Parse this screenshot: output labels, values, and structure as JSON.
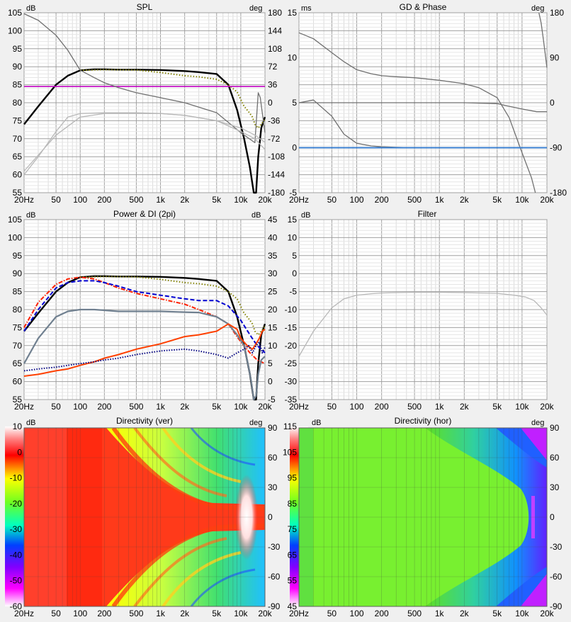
{
  "x_ticks": [
    "20Hz",
    "50",
    "100",
    "200",
    "500",
    "1k",
    "2k",
    "5k",
    "10k",
    "20k"
  ],
  "panels": {
    "spl": {
      "title": "SPL",
      "left_unit": "dB",
      "right_unit": "deg",
      "left_ticks": [
        "105",
        "100",
        "95",
        "90",
        "85",
        "80",
        "75",
        "70",
        "65",
        "60",
        "55"
      ],
      "right_ticks": [
        "180",
        "144",
        "108",
        "72",
        "36",
        "0",
        "-36",
        "-72",
        "-108",
        "-144",
        "-180"
      ]
    },
    "gd": {
      "title": "GD & Phase",
      "left_unit": "ms",
      "right_unit": "deg",
      "left_ticks": [
        "15",
        "10",
        "5",
        "0",
        "-5"
      ],
      "right_ticks": [
        "180",
        "90",
        "0",
        "-90",
        "-180"
      ]
    },
    "power": {
      "title": "Power & DI (2pi)",
      "left_unit": "dB",
      "right_unit": "dB",
      "left_ticks": [
        "105",
        "100",
        "95",
        "90",
        "85",
        "80",
        "75",
        "70",
        "65",
        "60",
        "55"
      ],
      "right_ticks": [
        "45",
        "40",
        "35",
        "30",
        "25",
        "20",
        "15",
        "10",
        "5",
        "0",
        "-5"
      ]
    },
    "filter": {
      "title": "Filter",
      "left_unit": "dB",
      "left_ticks": [
        "15",
        "10",
        "5",
        "0",
        "-5",
        "-10",
        "-15",
        "-20",
        "-25",
        "-30",
        "-35"
      ]
    },
    "dirver": {
      "title": "Directivity (ver)",
      "left_unit": "dB",
      "right_unit": "deg",
      "scale_ticks": [
        "10",
        "0",
        "-10",
        "-20",
        "-30",
        "-40",
        "-50",
        "-60"
      ],
      "right_ticks": [
        "90",
        "60",
        "30",
        "0",
        "-30",
        "-60",
        "-90"
      ]
    },
    "dirhor": {
      "title": "Directivity (hor)",
      "left_unit": "dB",
      "right_unit": "deg",
      "scale_ticks": [
        "115",
        "105",
        "95",
        "85",
        "75",
        "65",
        "55",
        "45"
      ],
      "right_ticks": [
        "90",
        "60",
        "30",
        "0",
        "-30",
        "-60",
        "-90"
      ]
    }
  },
  "colors": {
    "spl_main": "#000000",
    "spl_dotted": "#808000",
    "spl_hline": "#c000c0",
    "power_red": "#ff2000",
    "power_blue": "#0000d0",
    "di_grey": "#708090",
    "di_orange": "#ff4000",
    "di_navy": "#000080",
    "gd_blue": "#3a7fd0"
  },
  "chart_data": [
    {
      "type": "line",
      "title": "SPL",
      "xscale": "log",
      "xlim": [
        20,
        20000
      ],
      "ylim": [
        55,
        105
      ],
      "y2lim": [
        -180,
        180
      ],
      "series": [
        {
          "axis": "left",
          "style": "solid-black",
          "x": [
            20,
            30,
            50,
            70,
            100,
            150,
            200,
            300,
            500,
            1000,
            2000,
            3000,
            5000,
            7000,
            9000,
            11000,
            13000,
            14500,
            15500,
            16500,
            18000,
            20000
          ],
          "y": [
            74,
            79,
            85,
            87.5,
            89,
            89.3,
            89.3,
            89.2,
            89.2,
            89.1,
            88.8,
            88.5,
            88,
            85,
            78,
            70,
            62,
            55,
            55,
            65,
            73,
            76
          ]
        },
        {
          "axis": "left",
          "style": "dotted-olive",
          "x": [
            100,
            200,
            500,
            1000,
            2000,
            3000,
            5000,
            7000,
            9000,
            11000,
            12500,
            14000,
            15000,
            16500,
            18000,
            20000
          ],
          "y": [
            89,
            89.2,
            89.1,
            88.4,
            87.5,
            87.2,
            86.5,
            85,
            83,
            79,
            77.5,
            76,
            74,
            73,
            74,
            75.5
          ]
        },
        {
          "axis": "left",
          "style": "solid-magenta",
          "x": [
            20,
            20000
          ],
          "y": [
            84.5,
            84.5
          ]
        },
        {
          "axis": "right",
          "style": "grey",
          "x": [
            20,
            30,
            50,
            70,
            100,
            150,
            200,
            300,
            500,
            1000,
            2000,
            5000,
            10000,
            15000,
            16500,
            17500,
            18500,
            20000
          ],
          "y": [
            178,
            165,
            135,
            105,
            65,
            50,
            40,
            30,
            20,
            10,
            0,
            -20,
            -60,
            -80,
            20,
            10,
            -20,
            -60
          ]
        },
        {
          "axis": "left",
          "style": "lightgrey",
          "x": [
            20,
            30,
            50,
            70,
            100,
            200,
            500,
            1000,
            2000,
            5000,
            10000,
            15000,
            20000
          ],
          "y": [
            60,
            65,
            72,
            76,
            77,
            77.2,
            77.2,
            77,
            76.5,
            75,
            72,
            70,
            67
          ]
        },
        {
          "axis": "left",
          "style": "lightgrey",
          "x": [
            20,
            50,
            100,
            200,
            500,
            1000,
            2000,
            5000,
            10000,
            15000,
            20000
          ],
          "y": [
            61,
            71,
            76,
            77,
            77,
            77,
            76.5,
            75,
            73,
            71,
            69
          ]
        }
      ]
    },
    {
      "type": "line",
      "title": "GD & Phase",
      "xscale": "log",
      "xlim": [
        20,
        20000
      ],
      "ylim": [
        -5,
        15
      ],
      "y2lim": [
        -180,
        180
      ],
      "series": [
        {
          "axis": "right",
          "style": "grey",
          "x": [
            20,
            30,
            50,
            70,
            100,
            150,
            200,
            300,
            500,
            1000,
            2000,
            3000,
            5000,
            7000,
            10000,
            13000,
            14500
          ],
          "y": [
            140,
            128,
            100,
            82,
            66,
            58,
            54,
            52,
            50,
            45,
            38,
            30,
            10,
            -30,
            -100,
            -150,
            -180
          ]
        },
        {
          "axis": "right",
          "style": "grey",
          "x": [
            16000,
            17000,
            18000,
            19000,
            20000
          ],
          "y": [
            180,
            160,
            130,
            100,
            70
          ]
        },
        {
          "axis": "left",
          "style": "grey",
          "x": [
            20,
            30,
            50,
            70,
            100,
            150,
            200,
            300,
            500,
            1000,
            2000,
            5000,
            10000,
            15000,
            20000
          ],
          "y": [
            5,
            5.3,
            3.5,
            1.5,
            0.5,
            0.2,
            0.1,
            0.05,
            0,
            0,
            0,
            0,
            0,
            0,
            0
          ]
        },
        {
          "axis": "left",
          "style": "grey",
          "x": [
            20,
            100,
            200,
            500,
            1000,
            2000,
            5000,
            7000,
            10000,
            15000,
            20000
          ],
          "y": [
            5,
            5,
            5,
            5,
            5,
            5,
            4.9,
            4.6,
            4.3,
            4.0,
            4.0
          ]
        },
        {
          "axis": "left",
          "style": "blue",
          "x": [
            20,
            20000
          ],
          "y": [
            0,
            0
          ]
        }
      ]
    },
    {
      "type": "line",
      "title": "Power & DI (2pi)",
      "xscale": "log",
      "xlim": [
        20,
        20000
      ],
      "ylim": [
        55,
        105
      ],
      "y2lim": [
        -5,
        45
      ],
      "series": [
        {
          "axis": "left",
          "style": "solid-black",
          "x": [
            20,
            30,
            50,
            70,
            100,
            150,
            200,
            300,
            500,
            1000,
            2000,
            3000,
            5000,
            7000,
            9000,
            11000,
            13000,
            14500,
            15500,
            16500,
            18000,
            20000
          ],
          "y": [
            74,
            79,
            85,
            87.5,
            89,
            89.3,
            89.3,
            89.2,
            89.2,
            89.1,
            88.8,
            88.5,
            88,
            85,
            78,
            70,
            62,
            55,
            55,
            65,
            73,
            76
          ]
        },
        {
          "axis": "left",
          "style": "dotted-olive",
          "x": [
            100,
            200,
            500,
            1000,
            2000,
            3000,
            5000,
            7000,
            9000,
            11000,
            12500,
            14000,
            15000,
            16500,
            18000,
            20000
          ],
          "y": [
            89,
            89.2,
            89.1,
            88.4,
            87.5,
            87.2,
            86.5,
            85,
            83,
            79,
            77.5,
            76,
            74,
            73,
            74,
            75.5
          ]
        },
        {
          "axis": "left",
          "style": "dashdot-red",
          "x": [
            20,
            30,
            50,
            70,
            100,
            150,
            200,
            300,
            500,
            1000,
            2000,
            3000,
            5000,
            7000,
            10000,
            13000,
            16000,
            20000
          ],
          "y": [
            75,
            82,
            87,
            88.5,
            89,
            88.5,
            87.5,
            86,
            84.5,
            83,
            81.5,
            80,
            78,
            76,
            71,
            68,
            66,
            65
          ]
        },
        {
          "axis": "left",
          "style": "dashed-blue",
          "x": [
            20,
            30,
            50,
            70,
            100,
            150,
            200,
            300,
            500,
            1000,
            2000,
            3000,
            5000,
            7000,
            10000,
            13000,
            16000,
            20000
          ],
          "y": [
            74,
            80,
            86,
            87.5,
            88,
            88,
            87.5,
            86.5,
            85,
            84,
            83,
            82.5,
            82.5,
            81,
            77,
            73,
            70,
            68
          ]
        },
        {
          "axis": "left",
          "style": "grey",
          "x": [
            20,
            30,
            50,
            70,
            100,
            150,
            200,
            300,
            500,
            1000,
            2000,
            3000,
            5000,
            7000,
            9000,
            11000,
            12500,
            13500,
            14500,
            15500,
            16500,
            18000,
            20000
          ],
          "y": [
            65,
            72,
            78,
            79.5,
            80,
            80,
            79.8,
            79.5,
            79.5,
            79.5,
            79.3,
            79.2,
            78,
            76,
            73,
            70,
            64,
            60,
            55,
            56,
            62,
            66,
            67
          ]
        },
        {
          "axis": "right",
          "style": "orange",
          "x": [
            20,
            30,
            50,
            70,
            100,
            150,
            200,
            300,
            500,
            1000,
            2000,
            3000,
            5000,
            7000,
            9000,
            10000,
            12000,
            14000,
            15500,
            17000,
            18500,
            20000
          ],
          "y": [
            1.5,
            2,
            3,
            3.5,
            4.5,
            5.5,
            6.5,
            7.5,
            9,
            10.5,
            12.5,
            13,
            14,
            16,
            14.5,
            12,
            10,
            9,
            10.5,
            12,
            14,
            14.5
          ]
        },
        {
          "axis": "right",
          "style": "dotted-navy",
          "x": [
            20,
            30,
            50,
            70,
            100,
            150,
            200,
            300,
            500,
            1000,
            2000,
            3000,
            5000,
            7000,
            9000,
            11000,
            12500,
            14000,
            15500,
            17000,
            18500,
            20000
          ],
          "y": [
            3,
            3.5,
            4,
            4.5,
            5,
            5.5,
            6,
            6.5,
            7.5,
            8.5,
            9,
            8.5,
            7.5,
            6.5,
            8,
            9,
            10,
            8,
            10,
            11,
            8,
            9.5
          ]
        }
      ]
    },
    {
      "type": "line",
      "title": "Filter",
      "xscale": "log",
      "xlim": [
        20,
        20000
      ],
      "ylim": [
        -35,
        15
      ],
      "series": [
        {
          "axis": "left",
          "style": "lightgrey",
          "x": [
            20,
            30,
            50,
            70,
            100,
            150,
            200,
            300,
            500,
            1000,
            2000,
            5000,
            8000,
            11000,
            14000,
            17000,
            20000
          ],
          "y": [
            -23,
            -16,
            -9.5,
            -7,
            -6,
            -5.6,
            -5.4,
            -5.3,
            -5.2,
            -5.2,
            -5.3,
            -5.5,
            -6,
            -6.5,
            -7.5,
            -9.5,
            -11.5
          ]
        }
      ]
    },
    {
      "type": "heatmap",
      "title": "Directivity (ver)",
      "xscale": "log",
      "xlim": [
        20,
        20000
      ],
      "ylim": [
        -90,
        90
      ],
      "zlim": [
        -60,
        10
      ]
    },
    {
      "type": "heatmap",
      "title": "Directivity (hor)",
      "xscale": "log",
      "xlim": [
        20,
        20000
      ],
      "ylim": [
        -90,
        90
      ],
      "zlim": [
        45,
        115
      ]
    }
  ]
}
